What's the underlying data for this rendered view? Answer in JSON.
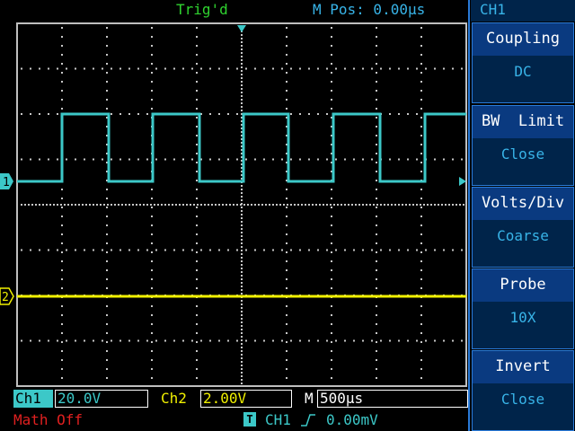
{
  "status": {
    "trigger": "Trig'd",
    "m_pos": "M Pos: 0.00µs"
  },
  "menu": {
    "title": "CH1",
    "items": [
      {
        "label": "Coupling",
        "value": "DC"
      },
      {
        "label": "BW  Limit",
        "value": "Close"
      },
      {
        "label": "Volts/Div",
        "value": "Coarse"
      },
      {
        "label": "Probe",
        "value": "10X"
      },
      {
        "label": "Invert",
        "value": "Close"
      }
    ]
  },
  "markers": {
    "ch1": "1",
    "ch2": "2"
  },
  "bottom": {
    "ch1_label": "Ch1",
    "ch1_scale": "20.0V",
    "ch2_label": "Ch2",
    "ch2_scale": "2.00V",
    "timebase_label": "M",
    "timebase": "500µs",
    "math": "Math Off",
    "trigger_source": "CH1",
    "trigger_level": "0.00mV",
    "trigger_icon": "T"
  },
  "colors": {
    "ch1": "#3cc8c8",
    "ch2": "#f0f000",
    "math": "#e02020",
    "status_green": "#2fd22f",
    "accent_blue": "#38b4e8",
    "menu_bg": "#00244a"
  }
}
